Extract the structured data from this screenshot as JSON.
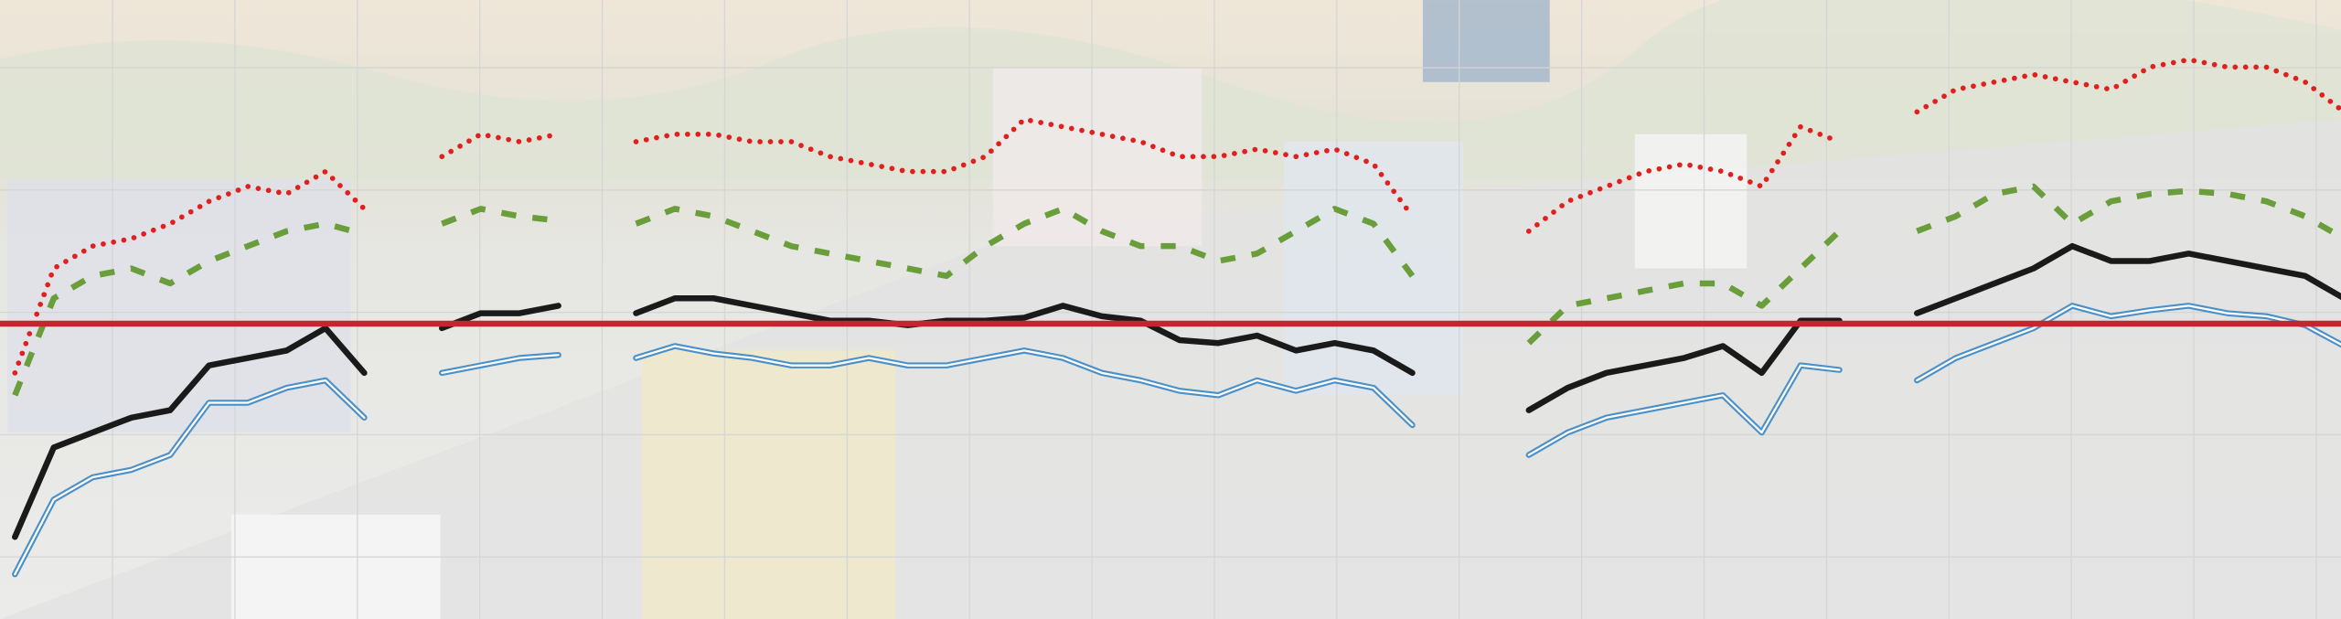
{
  "chart_data": {
    "type": "line",
    "x": [
      0,
      1,
      2,
      3,
      4,
      5,
      6,
      7,
      8,
      9,
      10,
      11,
      12,
      13,
      14,
      15,
      16,
      17,
      18,
      19,
      20,
      21,
      22,
      23,
      24,
      25,
      26,
      27,
      28,
      29,
      30,
      31,
      32,
      33,
      34,
      35,
      36,
      37,
      38,
      39,
      40,
      41,
      42,
      43,
      44,
      45,
      46,
      47,
      48,
      49,
      50,
      51,
      52,
      53,
      54,
      55,
      56,
      57,
      58,
      59,
      60
    ],
    "xlim": [
      0,
      60
    ],
    "ylim": [
      0,
      415
    ],
    "grid": true,
    "reference_line": {
      "value": 198,
      "color": "#c0282d"
    },
    "series": [
      {
        "color": "#e0201e",
        "style": "dotted",
        "values": [
          165,
          235,
          250,
          255,
          265,
          280,
          290,
          285,
          300,
          275,
          null,
          310,
          325,
          320,
          325,
          null,
          320,
          325,
          325,
          320,
          320,
          310,
          305,
          300,
          300,
          310,
          335,
          330,
          325,
          320,
          310,
          310,
          315,
          310,
          315,
          305,
          270,
          null,
          null,
          260,
          280,
          290,
          300,
          305,
          300,
          290,
          330,
          320,
          null,
          340,
          355,
          360,
          365,
          360,
          355,
          370,
          375,
          370,
          370,
          360,
          340
        ]
      },
      {
        "color": "#6a9e3a",
        "style": "dashed",
        "values": [
          150,
          215,
          230,
          235,
          225,
          240,
          250,
          260,
          265,
          258,
          null,
          265,
          275,
          270,
          267,
          null,
          265,
          275,
          270,
          260,
          250,
          245,
          240,
          235,
          230,
          250,
          265,
          275,
          260,
          250,
          250,
          240,
          245,
          260,
          275,
          265,
          230,
          null,
          null,
          185,
          210,
          215,
          220,
          225,
          225,
          210,
          235,
          260,
          null,
          260,
          270,
          285,
          290,
          265,
          280,
          285,
          287,
          285,
          280,
          270,
          255
        ]
      },
      {
        "color": "#1a1a1a",
        "style": "solid",
        "values": [
          55,
          115,
          125,
          135,
          140,
          170,
          175,
          180,
          195,
          165,
          null,
          195,
          205,
          205,
          210,
          null,
          205,
          215,
          215,
          210,
          205,
          200,
          200,
          197,
          200,
          200,
          202,
          210,
          203,
          200,
          187,
          185,
          190,
          180,
          185,
          180,
          165,
          null,
          null,
          140,
          155,
          165,
          170,
          175,
          183,
          165,
          200,
          200,
          null,
          205,
          215,
          225,
          235,
          250,
          240,
          240,
          245,
          240,
          235,
          230,
          215
        ]
      },
      {
        "color": "#4a90c8",
        "style": "double",
        "values": [
          30,
          80,
          95,
          100,
          110,
          145,
          145,
          155,
          160,
          135,
          null,
          165,
          170,
          175,
          177,
          null,
          175,
          183,
          178,
          175,
          170,
          170,
          175,
          170,
          170,
          175,
          180,
          175,
          165,
          160,
          153,
          150,
          160,
          153,
          160,
          155,
          130,
          null,
          null,
          110,
          125,
          135,
          140,
          145,
          150,
          125,
          170,
          167,
          null,
          160,
          175,
          185,
          195,
          210,
          203,
          207,
          210,
          205,
          203,
          197,
          183
        ]
      }
    ]
  }
}
